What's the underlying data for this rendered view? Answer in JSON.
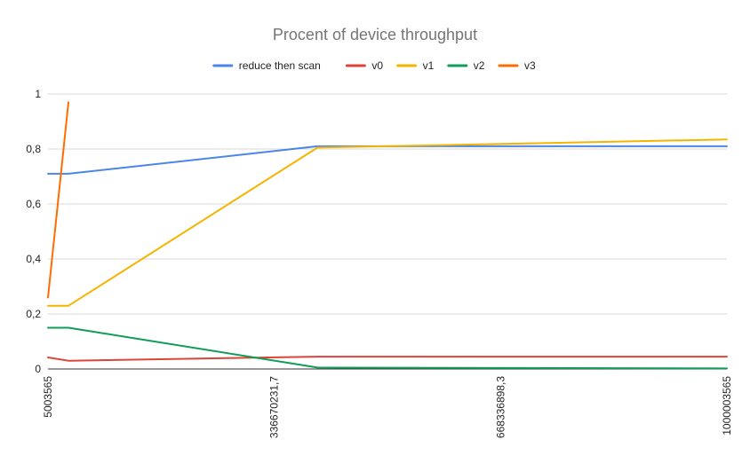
{
  "chart_data": {
    "type": "line",
    "title": "Procent of device throughput",
    "xlabel": "",
    "ylabel": "",
    "legend_position": "top",
    "grid": true,
    "xlim": [
      5003565,
      1000003565
    ],
    "ylim": [
      0,
      1
    ],
    "x_tick_labels": [
      {
        "value": 5003565,
        "label": "5003565"
      },
      {
        "value": 336670231.7,
        "label": "336670231,7"
      },
      {
        "value": 668336898.3,
        "label": "668336898,3"
      },
      {
        "value": 1000003565,
        "label": "1000003565"
      }
    ],
    "y_tick_labels": [
      {
        "value": 0,
        "label": "0"
      },
      {
        "value": 0.2,
        "label": "0,2"
      },
      {
        "value": 0.4,
        "label": "0,4"
      },
      {
        "value": 0.6,
        "label": "0,6"
      },
      {
        "value": 0.8,
        "label": "0,8"
      },
      {
        "value": 1,
        "label": "1"
      }
    ],
    "x": [
      5003565,
      35000000,
      400000000,
      1000003565
    ],
    "series": [
      {
        "name": "reduce then scan",
        "color": "#4a86e8",
        "values": [
          0.71,
          0.71,
          0.81,
          0.81
        ]
      },
      {
        "name": "v0",
        "color": "#db4437",
        "values": [
          0.042,
          0.03,
          0.045,
          0.045
        ]
      },
      {
        "name": "v1",
        "color": "#f4b400",
        "values": [
          0.23,
          0.23,
          0.805,
          0.835
        ]
      },
      {
        "name": "v2",
        "color": "#0f9d58",
        "values": [
          0.15,
          0.15,
          0.005,
          0.002
        ]
      },
      {
        "name": "v3",
        "color": "#ff6d01",
        "values": [
          0.26,
          0.97,
          null,
          null
        ]
      }
    ]
  }
}
